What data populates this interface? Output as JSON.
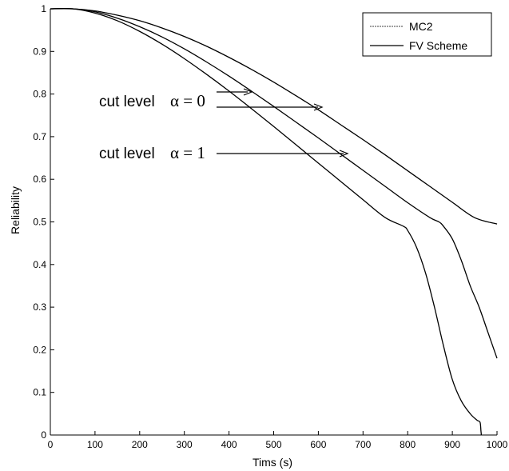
{
  "chart_data": {
    "type": "line",
    "title": "",
    "xlabel": "Tims (s)",
    "ylabel": "Reliability",
    "xlim": [
      0,
      1000
    ],
    "ylim": [
      0,
      1
    ],
    "xticks": [
      "0",
      "100",
      "200",
      "300",
      "400",
      "500",
      "600",
      "700",
      "800",
      "900",
      "1000"
    ],
    "yticks": [
      "0",
      "0.1",
      "0.2",
      "0.3",
      "0.4",
      "0.5",
      "0.6",
      "0.7",
      "0.8",
      "0.9",
      "1"
    ],
    "grid": false,
    "legend": {
      "position": "top-right",
      "entries": [
        "MC2",
        "FV Scheme"
      ]
    },
    "series": [
      {
        "name": "MC2",
        "x": [
          0,
          50,
          100,
          150,
          200,
          250,
          300,
          350,
          400,
          450,
          500,
          550,
          600,
          650,
          700,
          750,
          800,
          850,
          900,
          950,
          1000
        ],
        "values": [
          1,
          1,
          0.995,
          0.985,
          0.972,
          0.955,
          0.935,
          0.912,
          0.886,
          0.858,
          0.828,
          0.796,
          0.763,
          0.728,
          0.693,
          0.657,
          0.62,
          0.583,
          0.546,
          0.51,
          0.495
        ]
      },
      {
        "name": "FV Scheme",
        "x": [
          0,
          50,
          100,
          150,
          200,
          250,
          300,
          350,
          400,
          450,
          500,
          550,
          600,
          650,
          700,
          750,
          800,
          850,
          900,
          950,
          1000
        ],
        "values": [
          1,
          1,
          0.995,
          0.985,
          0.972,
          0.955,
          0.935,
          0.912,
          0.886,
          0.858,
          0.828,
          0.796,
          0.763,
          0.728,
          0.693,
          0.657,
          0.62,
          0.583,
          0.546,
          0.51,
          0.495
        ]
      },
      {
        "name": "",
        "x": [
          0,
          50,
          100,
          150,
          200,
          250,
          300,
          350,
          400,
          450,
          500,
          550,
          600,
          650,
          700,
          750,
          800,
          850,
          870,
          880,
          900,
          920,
          940,
          960,
          980,
          1000
        ],
        "values": [
          1,
          1,
          0.993,
          0.978,
          0.958,
          0.934,
          0.906,
          0.875,
          0.842,
          0.807,
          0.771,
          0.734,
          0.697,
          0.659,
          0.621,
          0.583,
          0.545,
          0.51,
          0.5,
          0.49,
          0.46,
          0.41,
          0.35,
          0.3,
          0.24,
          0.18
        ]
      },
      {
        "name": "",
        "x": [
          0,
          50,
          100,
          150,
          200,
          250,
          300,
          350,
          400,
          450,
          500,
          550,
          600,
          650,
          700,
          750,
          790,
          800,
          820,
          840,
          860,
          880,
          900,
          920,
          940,
          955,
          962,
          964,
          965
        ],
        "values": [
          1,
          1,
          0.99,
          0.972,
          0.947,
          0.917,
          0.883,
          0.846,
          0.807,
          0.766,
          0.724,
          0.681,
          0.638,
          0.595,
          0.552,
          0.51,
          0.49,
          0.48,
          0.44,
          0.38,
          0.3,
          0.21,
          0.13,
          0.08,
          0.05,
          0.035,
          0.03,
          0.01,
          0
        ]
      }
    ],
    "annotations": [
      {
        "text": "cut level",
        "math": "α = 0"
      },
      {
        "text": "cut level",
        "math": "α = 1"
      }
    ]
  }
}
